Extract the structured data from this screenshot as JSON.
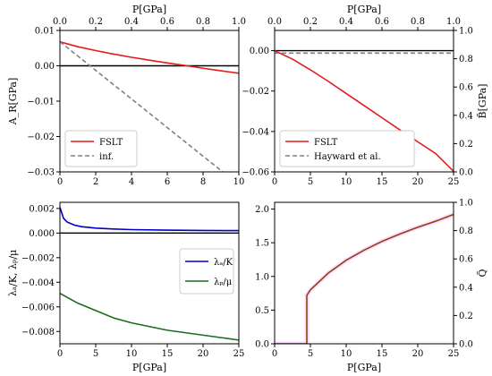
{
  "chart_data": [
    {
      "type": "line",
      "panel": "top-left",
      "xlabel": "",
      "ylabel": "A_R[GPa]",
      "top_xlabel": "P[GPa]",
      "xlim": [
        0,
        10
      ],
      "ylim": [
        -0.03,
        0.01
      ],
      "top_xlim": [
        0,
        1.0
      ],
      "xticks": [
        "0",
        "2",
        "4",
        "6",
        "8",
        "10"
      ],
      "yticks": [
        "0.01",
        "0.00",
        "−0.01",
        "−0.02",
        "−0.03"
      ],
      "top_xticks": [
        "0.0",
        "0.2",
        "0.4",
        "0.6",
        "0.8",
        "1.0"
      ],
      "hline": 0,
      "legend_position": "lower-left",
      "series": [
        {
          "name": "FSLT",
          "color": "#e41a1c",
          "style": "solid",
          "x": [
            0,
            1,
            2,
            3,
            4,
            5,
            6,
            7,
            8,
            9,
            10
          ],
          "y": [
            0.0068,
            0.0054,
            0.0043,
            0.0033,
            0.0024,
            0.0016,
            0.0008,
            0.0001,
            -0.0007,
            -0.0014,
            -0.0021
          ]
        },
        {
          "name": "inf.",
          "color": "#808080",
          "style": "dashed",
          "x": [
            0,
            9.1
          ],
          "y": [
            0.0068,
            -0.03
          ]
        }
      ]
    },
    {
      "type": "line",
      "panel": "top-right",
      "xlabel": "",
      "ylabel": "",
      "right_ylabel": "B̃[GPa]",
      "top_xlabel": "P[GPa]",
      "xlim": [
        0,
        25
      ],
      "ylim": [
        -0.06,
        0.01
      ],
      "right_ylim": [
        0.0,
        1.0
      ],
      "top_xlim": [
        0,
        1.0
      ],
      "xticks": [
        "0",
        "5",
        "10",
        "15",
        "20",
        "25"
      ],
      "yticks": [
        "0.00",
        "−0.02",
        "−0.04",
        "−0.06"
      ],
      "right_yticks": [
        "0.0",
        "0.2",
        "0.4",
        "0.6",
        "0.8",
        "1.0"
      ],
      "top_xticks": [
        "0.0",
        "0.2",
        "0.4",
        "0.6",
        "0.8",
        "1.0"
      ],
      "hline": 0,
      "legend_position": "lower-left",
      "series": [
        {
          "name": "FSLT",
          "color": "#e41a1c",
          "style": "solid",
          "x": [
            0,
            2.5,
            5,
            7.5,
            10,
            12.5,
            15,
            17.5,
            20,
            22.5,
            25
          ],
          "y": [
            0.0,
            -0.0042,
            -0.0095,
            -0.0152,
            -0.0212,
            -0.0272,
            -0.0332,
            -0.0392,
            -0.0451,
            -0.0509,
            -0.0597
          ]
        },
        {
          "name": "Hayward et al.",
          "color": "#808080",
          "style": "dashed",
          "x": [
            0,
            25
          ],
          "y": [
            -0.0012,
            -0.0012
          ]
        }
      ]
    },
    {
      "type": "line",
      "panel": "bottom-left",
      "xlabel": "P[GPa]",
      "ylabel": "λₐ/K, λₚ/μ",
      "xlim": [
        0,
        25
      ],
      "ylim": [
        -0.009,
        0.0025
      ],
      "xticks": [
        "0",
        "5",
        "10",
        "15",
        "20",
        "25"
      ],
      "yticks": [
        "0.002",
        "0.000",
        "−0.002",
        "−0.004",
        "−0.006",
        "−0.008"
      ],
      "hline": 0,
      "legend_position": "right",
      "series": [
        {
          "name": "λₐ/K",
          "color": "#0000cc",
          "style": "solid",
          "x": [
            0,
            0.5,
            1,
            2,
            3,
            5,
            7.5,
            10,
            15,
            20,
            25
          ],
          "y": [
            0.0021,
            0.0012,
            0.0009,
            0.00065,
            0.00052,
            0.0004,
            0.00033,
            0.00028,
            0.00024,
            0.00021,
            0.0002
          ]
        },
        {
          "name": "λₚ/μ",
          "color": "#1e6b1e",
          "style": "solid",
          "x": [
            0,
            2.5,
            5,
            7.5,
            10,
            12.5,
            15,
            17.5,
            20,
            22.5,
            25
          ],
          "y": [
            -0.0049,
            -0.0057,
            -0.0063,
            -0.0069,
            -0.0073,
            -0.0076,
            -0.0079,
            -0.0081,
            -0.0083,
            -0.0085,
            -0.0087
          ]
        }
      ]
    },
    {
      "type": "line",
      "panel": "bottom-right",
      "xlabel": "P[GPa]",
      "ylabel": "",
      "right_ylabel": "Q̃",
      "xlim": [
        0,
        25
      ],
      "ylim": [
        0,
        2.1
      ],
      "right_ylim": [
        0,
        1.0
      ],
      "xticks": [
        "0",
        "5",
        "10",
        "15",
        "20",
        "25"
      ],
      "yticks": [
        "0.0",
        "0.5",
        "1.0",
        "1.5",
        "2.0"
      ],
      "right_yticks": [
        "0.0",
        "0.2",
        "0.4",
        "0.6",
        "0.8",
        "1.0"
      ],
      "series": [
        {
          "name": "",
          "color": "#8b4513",
          "style": "solid",
          "x": [
            0,
            4.5,
            4.5,
            5,
            7.5,
            10,
            12.5,
            15,
            17.5,
            20,
            22.5,
            25
          ],
          "y": [
            0,
            0,
            0.72,
            0.8,
            1.05,
            1.24,
            1.39,
            1.52,
            1.63,
            1.73,
            1.82,
            1.92
          ]
        }
      ]
    }
  ],
  "colors": {
    "zero_line": "#000000",
    "axis": "#000000",
    "band": "#ffccff"
  }
}
